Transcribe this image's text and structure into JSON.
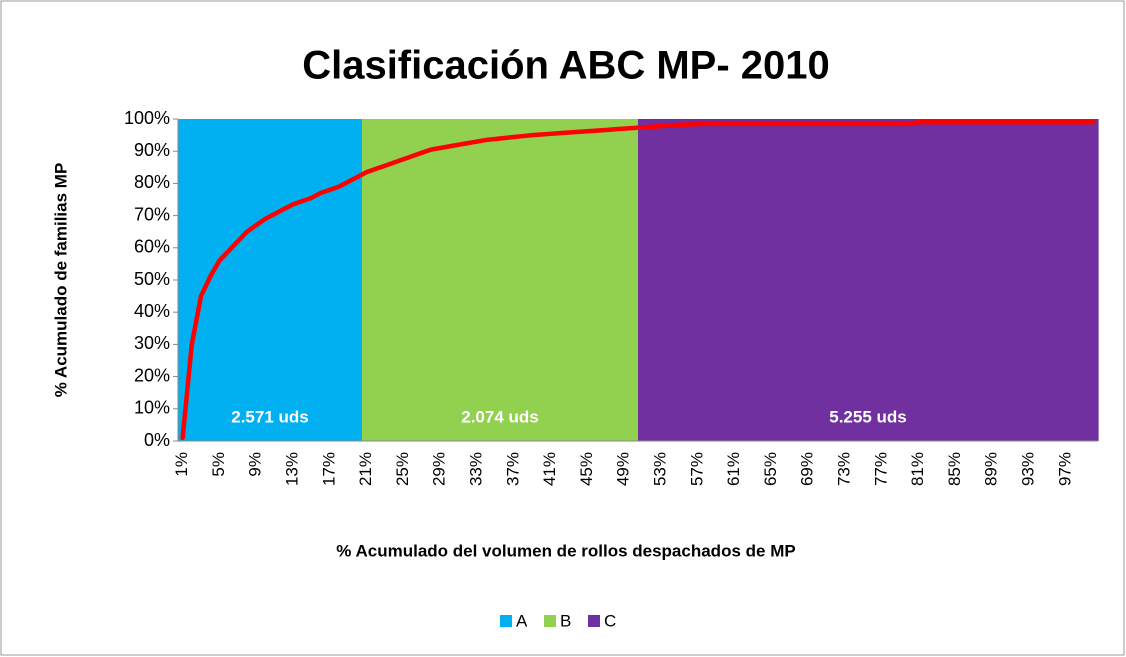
{
  "chart_data": {
    "type": "bar-line",
    "title": "Clasificación ABC MP- 2010",
    "x_label": "% Acumulado del volumen de rollos despachados de MP",
    "y_label": "% Acumulado de familias MP",
    "categories": [
      "1%",
      null,
      null,
      null,
      "5%",
      null,
      null,
      null,
      "9%",
      null,
      null,
      null,
      "13%",
      null,
      null,
      null,
      "17%",
      null,
      null,
      null,
      "21%",
      null,
      null,
      null,
      "25%",
      null,
      null,
      null,
      "29%",
      null,
      null,
      null,
      "33%",
      null,
      null,
      null,
      "37%",
      null,
      null,
      null,
      "41%",
      null,
      null,
      null,
      "45%",
      null,
      null,
      null,
      "49%",
      null,
      null,
      null,
      "53%",
      null,
      null,
      null,
      "57%",
      null,
      null,
      null,
      "61%",
      null,
      null,
      null,
      "65%",
      null,
      null,
      null,
      "69%",
      null,
      null,
      null,
      "73%",
      null,
      null,
      null,
      "77%",
      null,
      null,
      null,
      "81%",
      null,
      null,
      null,
      "85%",
      null,
      null,
      null,
      "89%",
      null,
      null,
      null,
      "93%",
      null,
      null,
      null,
      "97%",
      null,
      null,
      null
    ],
    "series": [
      {
        "name": "A",
        "color": "#00b0f0",
        "kind": "bar",
        "values": [
          100,
          100,
          100,
          100,
          100,
          100,
          100,
          100,
          100,
          100,
          100,
          100,
          100,
          100,
          100,
          100,
          100,
          100,
          100,
          100,
          null,
          null,
          null,
          null,
          null,
          null,
          null,
          null,
          null,
          null,
          null,
          null,
          null,
          null,
          null,
          null,
          null,
          null,
          null,
          null,
          null,
          null,
          null,
          null,
          null,
          null,
          null,
          null,
          null,
          null,
          null,
          null,
          null,
          null,
          null,
          null,
          null,
          null,
          null,
          null,
          null,
          null,
          null,
          null,
          null,
          null,
          null,
          null,
          null,
          null,
          null,
          null,
          null,
          null,
          null,
          null,
          null,
          null,
          null,
          null,
          null,
          null,
          null,
          null,
          null,
          null,
          null,
          null,
          null,
          null,
          null,
          null,
          null,
          null,
          null,
          null,
          null,
          null,
          null,
          null
        ]
      },
      {
        "name": "B",
        "color": "#92d050",
        "kind": "bar",
        "values": [
          null,
          null,
          null,
          null,
          null,
          null,
          null,
          null,
          null,
          null,
          null,
          null,
          null,
          null,
          null,
          null,
          null,
          null,
          null,
          null,
          100,
          100,
          100,
          100,
          100,
          100,
          100,
          100,
          100,
          100,
          100,
          100,
          100,
          100,
          100,
          100,
          100,
          100,
          100,
          100,
          100,
          100,
          100,
          100,
          100,
          100,
          100,
          100,
          100,
          100,
          null,
          null,
          null,
          null,
          null,
          null,
          null,
          null,
          null,
          null,
          null,
          null,
          null,
          null,
          null,
          null,
          null,
          null,
          null,
          null,
          null,
          null,
          null,
          null,
          null,
          null,
          null,
          null,
          null,
          null,
          null,
          null,
          null,
          null,
          null,
          null,
          null,
          null,
          null,
          null,
          null,
          null,
          null,
          null,
          null,
          null,
          null,
          null,
          null,
          null
        ]
      },
      {
        "name": "C",
        "color": "#7030a0",
        "kind": "bar",
        "values": [
          null,
          null,
          null,
          null,
          null,
          null,
          null,
          null,
          null,
          null,
          null,
          null,
          null,
          null,
          null,
          null,
          null,
          null,
          null,
          null,
          null,
          null,
          null,
          null,
          null,
          null,
          null,
          null,
          null,
          null,
          null,
          null,
          null,
          null,
          null,
          null,
          null,
          null,
          null,
          null,
          null,
          null,
          null,
          null,
          null,
          null,
          null,
          null,
          null,
          null,
          100,
          100,
          100,
          100,
          100,
          100,
          100,
          100,
          100,
          100,
          100,
          100,
          100,
          100,
          100,
          100,
          100,
          100,
          100,
          100,
          100,
          100,
          100,
          100,
          100,
          100,
          100,
          100,
          100,
          100,
          100,
          100,
          100,
          100,
          100,
          100,
          100,
          100,
          100,
          100,
          100,
          100,
          100,
          100,
          100,
          100,
          100,
          100,
          100,
          100
        ]
      },
      {
        "color": "#ff0000",
        "kind": "line",
        "values": [
          1,
          30,
          45,
          51,
          56,
          59,
          62,
          65,
          67,
          69,
          70.5,
          72,
          73.5,
          74.5,
          75.5,
          77,
          78,
          79,
          80.5,
          82,
          83.5,
          84.5,
          85.5,
          86.5,
          87.5,
          88.5,
          89.5,
          90.5,
          91,
          91.5,
          92,
          92.5,
          93,
          93.5,
          93.8,
          94.1,
          94.4,
          94.7,
          95,
          95.2,
          95.4,
          95.6,
          95.8,
          96,
          96.2,
          96.4,
          96.6,
          96.8,
          97,
          97.2,
          97.4,
          97.6,
          97.8,
          98,
          98.2,
          98.3,
          98.4,
          98.5,
          98.5,
          98.5,
          98.5,
          98.5,
          98.5,
          98.5,
          98.5,
          98.5,
          98.5,
          98.5,
          98.5,
          98.5,
          98.5,
          98.5,
          98.5,
          98.5,
          98.5,
          98.5,
          98.5,
          98.5,
          98.5,
          98.5,
          99,
          99,
          99,
          99,
          99,
          99,
          99,
          99,
          99,
          99,
          99,
          99,
          99,
          99,
          99,
          99,
          99,
          99,
          99,
          99
        ]
      }
    ],
    "annotations": [
      "2.571 uds",
      "2.074 uds",
      "5.255 uds"
    ],
    "ylim": [
      0,
      100
    ],
    "yticks": [
      {
        "value": 0,
        "label": "0%"
      },
      {
        "value": 10,
        "label": "10%"
      },
      {
        "value": 20,
        "label": "20%"
      },
      {
        "value": 30,
        "label": "30%"
      },
      {
        "value": 40,
        "label": "40%"
      },
      {
        "value": 50,
        "label": "50%"
      },
      {
        "value": 60,
        "label": "60%"
      },
      {
        "value": 70,
        "label": "70%"
      },
      {
        "value": 80,
        "label": "80%"
      },
      {
        "value": 90,
        "label": "90%"
      },
      {
        "value": 100,
        "label": "100%"
      }
    ],
    "legend": "bottom"
  }
}
